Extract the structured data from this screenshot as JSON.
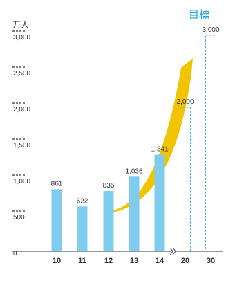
{
  "chart_data": {
    "type": "bar",
    "title": "",
    "unit_label": "万人",
    "target_label": "目標",
    "categories": [
      "10",
      "11",
      "12",
      "13",
      "14",
      "20",
      "30"
    ],
    "values": [
      861,
      622,
      836,
      1036,
      1341,
      2000,
      3000
    ],
    "value_labels": [
      "861",
      "622",
      "836",
      "1,036",
      "1,341",
      "2,000",
      "3,000"
    ],
    "target_categories": [
      "20",
      "30"
    ],
    "y_ticks": [
      {
        "value": 0,
        "label": "0"
      },
      {
        "value": 500,
        "label": "500"
      },
      {
        "value": 1000,
        "label": "1,000"
      },
      {
        "value": 1500,
        "label": "1,500"
      },
      {
        "value": 2000,
        "label": "2,000"
      },
      {
        "value": 2500,
        "label": "2,500"
      },
      {
        "value": 3000,
        "label": "3,000"
      }
    ],
    "ylim": [
      0,
      3000
    ],
    "axis_break_between": [
      "14",
      "20"
    ],
    "trend_arrow": "rising",
    "colors": {
      "bar": "#7fcdee",
      "target_outline": "#46b3e6",
      "target_label": "#1aa3dd",
      "arrow": "#f2c400",
      "axis": "#333333",
      "text": "#333333"
    }
  }
}
